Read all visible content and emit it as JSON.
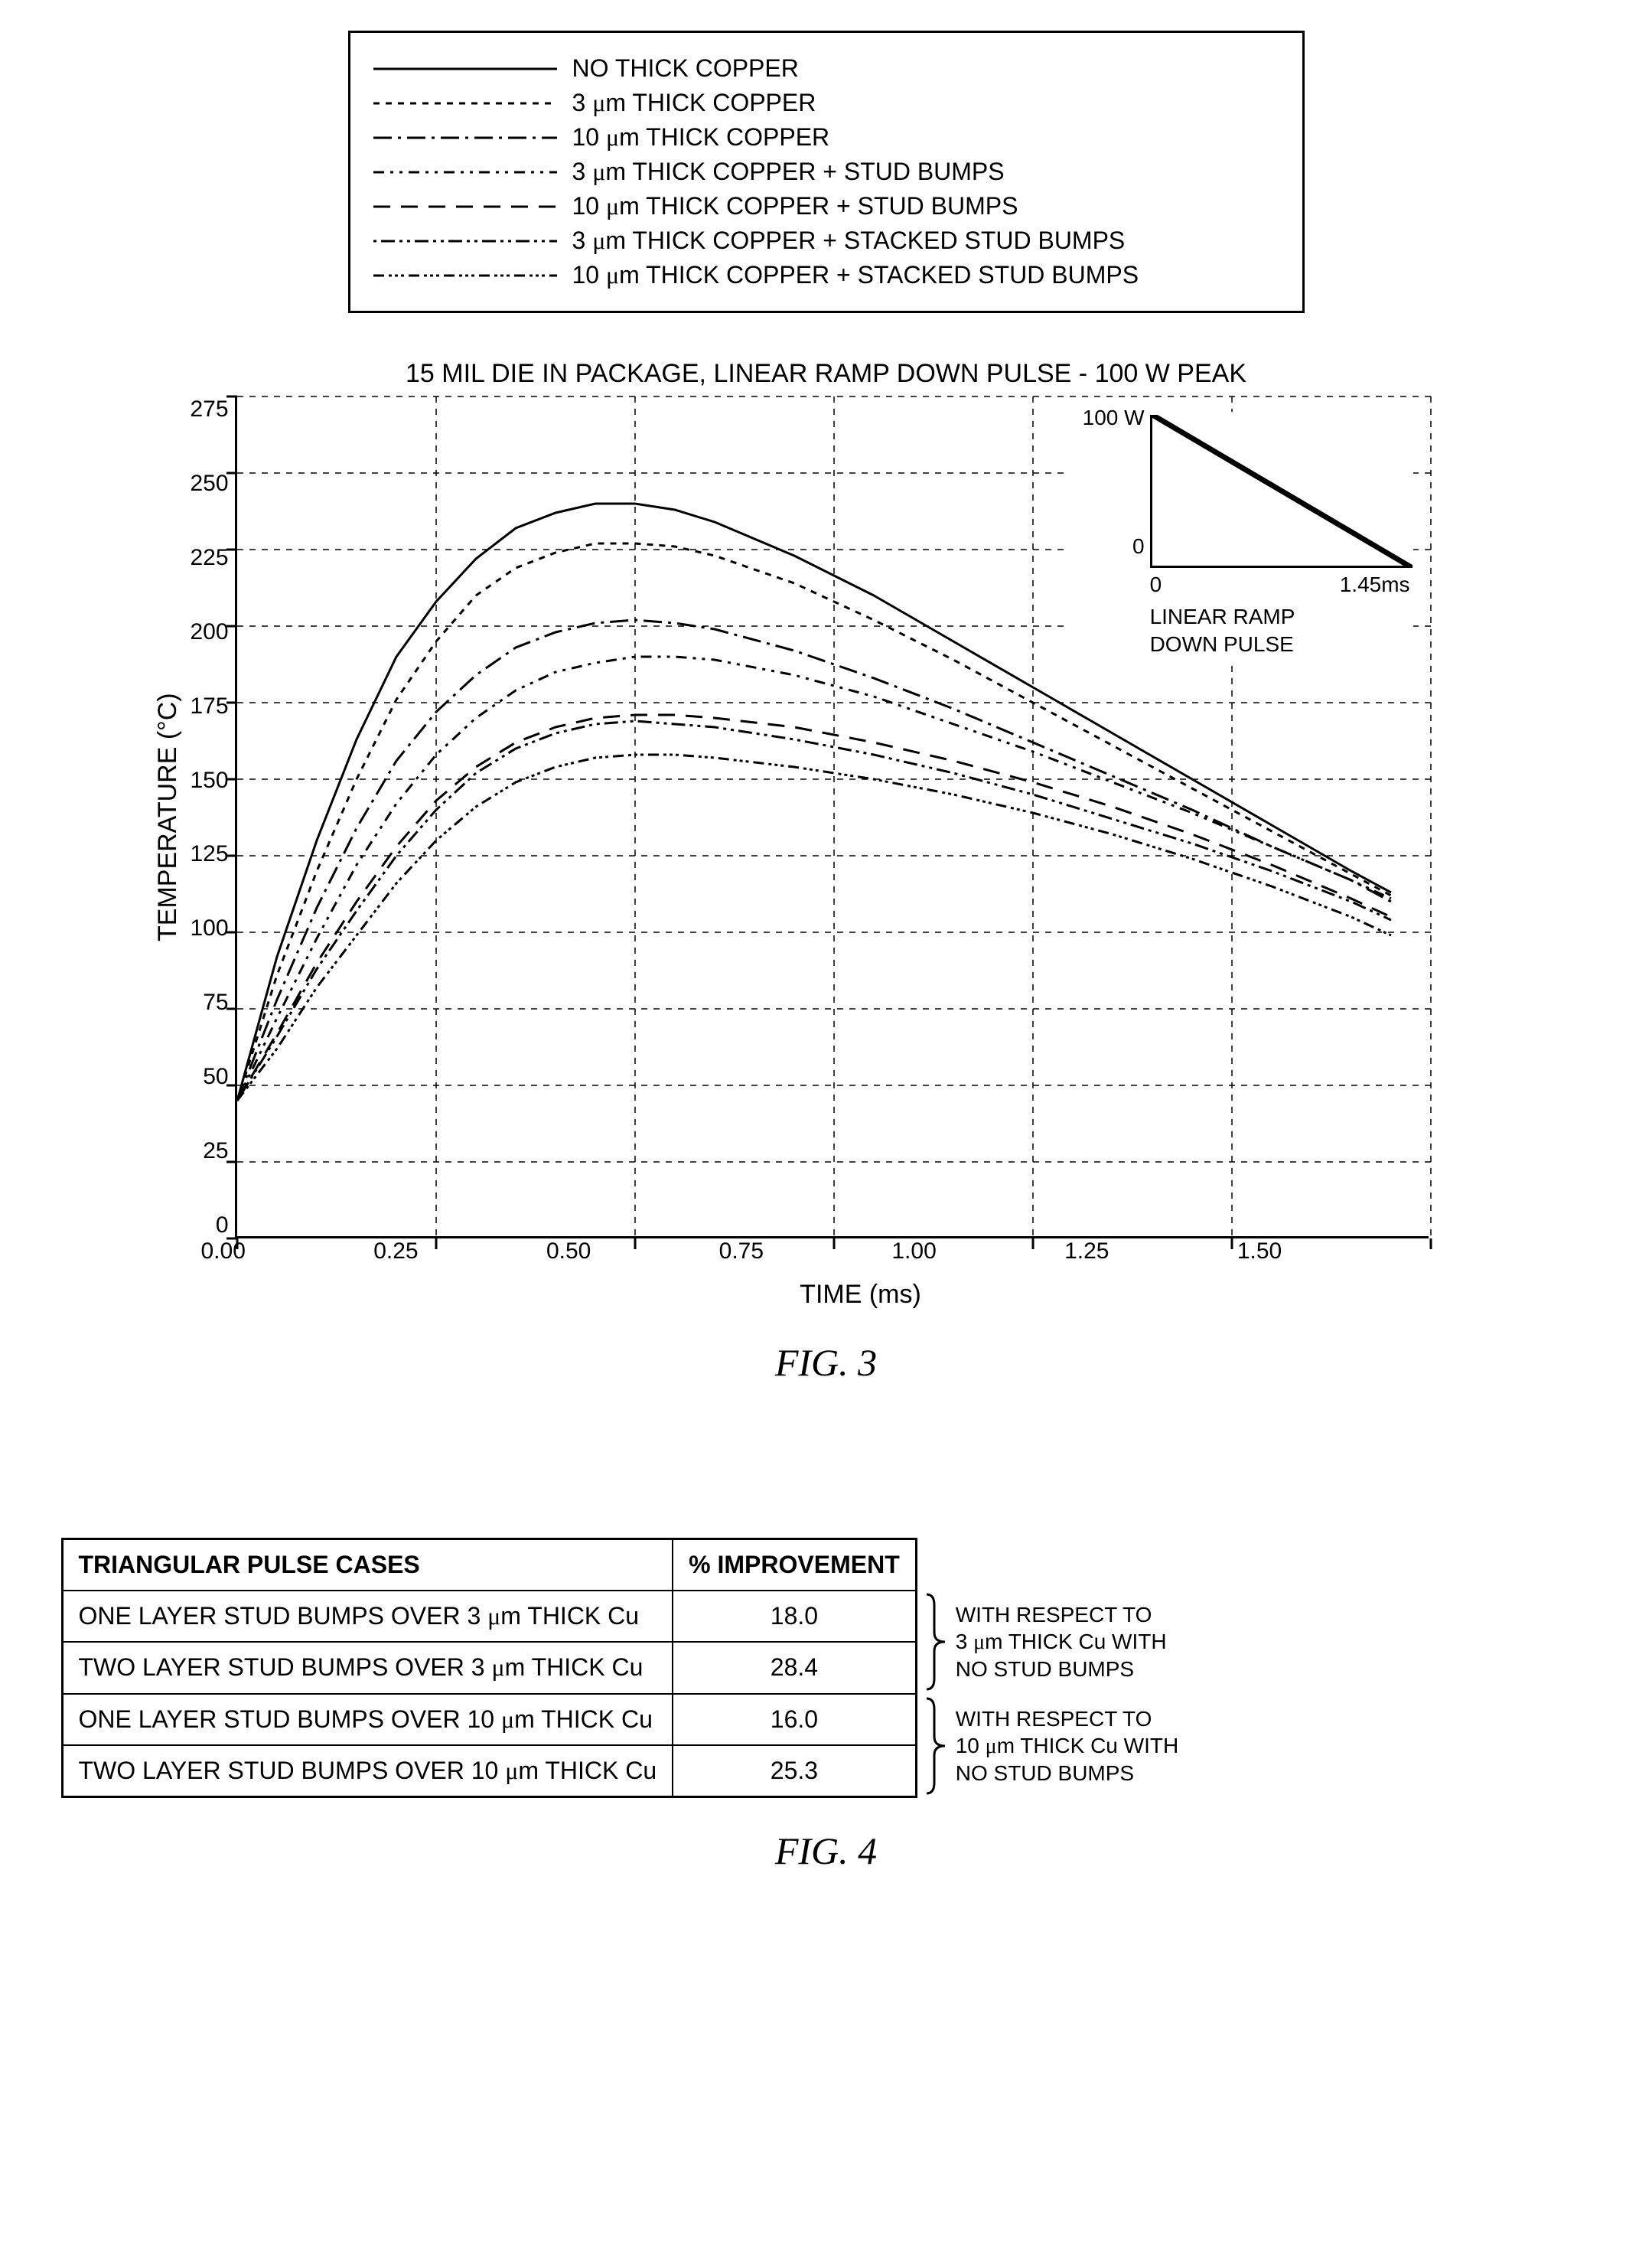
{
  "legend": {
    "items": [
      {
        "label_html": "NO THICK COPPER",
        "dash": "none"
      },
      {
        "label_html": "3 <span class='mu'>μ</span>m THICK COPPER",
        "dash": "8,8"
      },
      {
        "label_html": "10 <span class='mu'>μ</span>m THICK COPPER",
        "dash": "24,8,4,8"
      },
      {
        "label_html": "3 <span class='mu'>μ</span>m THICK COPPER + STUD BUMPS",
        "dash": "14,8,4,8,4,8"
      },
      {
        "label_html": "10 <span class='mu'>μ</span>m THICK COPPER + STUD BUMPS",
        "dash": "22,14"
      },
      {
        "label_html": "3 <span class='mu'>μ</span>m THICK COPPER + STACKED STUD BUMPS",
        "dash": "4,6,18,6,4,6"
      },
      {
        "label_html": "10 <span class='mu'>μ</span>m THICK COPPER + STACKED STUD BUMPS",
        "dash": "14,6,4,4,4,4,4,6"
      }
    ]
  },
  "chart": {
    "title": "15 MIL DIE IN PACKAGE, LINEAR RAMP DOWN PULSE - 100 W PEAK",
    "ylabel": "TEMPERATURE (°C)",
    "xlabel": "TIME (ms)",
    "caption": "FIG. 3",
    "xlim": [
      0,
      1.5
    ],
    "ylim": [
      0,
      275
    ],
    "xticks": [
      "0.00",
      "0.25",
      "0.50",
      "0.75",
      "1.00",
      "1.25",
      "1.50"
    ],
    "yticks": [
      "275",
      "250",
      "225",
      "200",
      "175",
      "150",
      "125",
      "100",
      "75",
      "50",
      "25",
      "0"
    ],
    "grid_color": "#000000",
    "series": [
      {
        "dash": "none",
        "pts": [
          [
            0,
            45
          ],
          [
            0.05,
            92
          ],
          [
            0.1,
            130
          ],
          [
            0.15,
            163
          ],
          [
            0.2,
            190
          ],
          [
            0.25,
            208
          ],
          [
            0.3,
            222
          ],
          [
            0.35,
            232
          ],
          [
            0.4,
            237
          ],
          [
            0.45,
            240
          ],
          [
            0.5,
            240
          ],
          [
            0.55,
            238
          ],
          [
            0.6,
            234
          ],
          [
            0.7,
            223
          ],
          [
            0.8,
            210
          ],
          [
            0.9,
            195
          ],
          [
            1.0,
            180
          ],
          [
            1.1,
            165
          ],
          [
            1.2,
            150
          ],
          [
            1.3,
            135
          ],
          [
            1.4,
            120
          ],
          [
            1.45,
            113
          ]
        ]
      },
      {
        "dash": "8,8",
        "pts": [
          [
            0,
            45
          ],
          [
            0.05,
            86
          ],
          [
            0.1,
            120
          ],
          [
            0.15,
            150
          ],
          [
            0.2,
            176
          ],
          [
            0.25,
            195
          ],
          [
            0.3,
            210
          ],
          [
            0.35,
            219
          ],
          [
            0.4,
            224
          ],
          [
            0.45,
            227
          ],
          [
            0.5,
            227
          ],
          [
            0.55,
            226
          ],
          [
            0.6,
            223
          ],
          [
            0.7,
            214
          ],
          [
            0.8,
            202
          ],
          [
            0.9,
            189
          ],
          [
            1.0,
            175
          ],
          [
            1.1,
            161
          ],
          [
            1.2,
            147
          ],
          [
            1.3,
            133
          ],
          [
            1.4,
            119
          ],
          [
            1.45,
            112
          ]
        ]
      },
      {
        "dash": "24,8,4,8",
        "pts": [
          [
            0,
            45
          ],
          [
            0.05,
            78
          ],
          [
            0.1,
            108
          ],
          [
            0.15,
            134
          ],
          [
            0.2,
            156
          ],
          [
            0.25,
            172
          ],
          [
            0.3,
            184
          ],
          [
            0.35,
            193
          ],
          [
            0.4,
            198
          ],
          [
            0.45,
            201
          ],
          [
            0.5,
            202
          ],
          [
            0.55,
            201
          ],
          [
            0.6,
            199
          ],
          [
            0.7,
            192
          ],
          [
            0.8,
            183
          ],
          [
            0.9,
            173
          ],
          [
            1.0,
            162
          ],
          [
            1.1,
            151
          ],
          [
            1.2,
            140
          ],
          [
            1.3,
            128
          ],
          [
            1.4,
            117
          ],
          [
            1.45,
            110
          ]
        ]
      },
      {
        "dash": "14,8,4,8,4,8",
        "pts": [
          [
            0,
            45
          ],
          [
            0.05,
            72
          ],
          [
            0.1,
            98
          ],
          [
            0.15,
            122
          ],
          [
            0.2,
            142
          ],
          [
            0.25,
            158
          ],
          [
            0.3,
            170
          ],
          [
            0.35,
            179
          ],
          [
            0.4,
            185
          ],
          [
            0.45,
            188
          ],
          [
            0.5,
            190
          ],
          [
            0.55,
            190
          ],
          [
            0.6,
            189
          ],
          [
            0.7,
            184
          ],
          [
            0.8,
            177
          ],
          [
            0.9,
            168
          ],
          [
            1.0,
            159
          ],
          [
            1.1,
            149
          ],
          [
            1.2,
            139
          ],
          [
            1.3,
            128
          ],
          [
            1.4,
            117
          ],
          [
            1.45,
            111
          ]
        ]
      },
      {
        "dash": "22,14",
        "pts": [
          [
            0,
            45
          ],
          [
            0.05,
            67
          ],
          [
            0.1,
            90
          ],
          [
            0.15,
            110
          ],
          [
            0.2,
            128
          ],
          [
            0.25,
            143
          ],
          [
            0.3,
            154
          ],
          [
            0.35,
            162
          ],
          [
            0.4,
            167
          ],
          [
            0.45,
            170
          ],
          [
            0.5,
            171
          ],
          [
            0.55,
            171
          ],
          [
            0.6,
            170
          ],
          [
            0.7,
            167
          ],
          [
            0.8,
            162
          ],
          [
            0.9,
            156
          ],
          [
            1.0,
            149
          ],
          [
            1.1,
            141
          ],
          [
            1.2,
            132
          ],
          [
            1.3,
            122
          ],
          [
            1.4,
            111
          ],
          [
            1.45,
            105
          ]
        ]
      },
      {
        "dash": "4,6,18,6,4,6",
        "pts": [
          [
            0,
            45
          ],
          [
            0.05,
            66
          ],
          [
            0.1,
            88
          ],
          [
            0.15,
            107
          ],
          [
            0.2,
            125
          ],
          [
            0.25,
            140
          ],
          [
            0.3,
            152
          ],
          [
            0.35,
            160
          ],
          [
            0.4,
            165
          ],
          [
            0.45,
            168
          ],
          [
            0.5,
            169
          ],
          [
            0.55,
            168
          ],
          [
            0.6,
            167
          ],
          [
            0.7,
            163
          ],
          [
            0.8,
            158
          ],
          [
            0.9,
            152
          ],
          [
            1.0,
            145
          ],
          [
            1.1,
            137
          ],
          [
            1.2,
            129
          ],
          [
            1.3,
            120
          ],
          [
            1.4,
            110
          ],
          [
            1.45,
            104
          ]
        ]
      },
      {
        "dash": "14,6,4,4,4,4,4,6",
        "pts": [
          [
            0,
            45
          ],
          [
            0.05,
            62
          ],
          [
            0.1,
            82
          ],
          [
            0.15,
            99
          ],
          [
            0.2,
            116
          ],
          [
            0.25,
            130
          ],
          [
            0.3,
            141
          ],
          [
            0.35,
            149
          ],
          [
            0.4,
            154
          ],
          [
            0.45,
            157
          ],
          [
            0.5,
            158
          ],
          [
            0.55,
            158
          ],
          [
            0.6,
            157
          ],
          [
            0.7,
            154
          ],
          [
            0.8,
            150
          ],
          [
            0.9,
            145
          ],
          [
            1.0,
            139
          ],
          [
            1.1,
            132
          ],
          [
            1.2,
            124
          ],
          [
            1.3,
            115
          ],
          [
            1.4,
            105
          ],
          [
            1.45,
            99
          ]
        ]
      }
    ],
    "inset": {
      "y_top": "100 W",
      "y_bot": "0",
      "x_left": "0",
      "x_right": "1.45ms",
      "caption_line1": "LINEAR RAMP",
      "caption_line2": "DOWN PULSE"
    }
  },
  "table": {
    "caption": "FIG. 4",
    "headers": [
      "TRIANGULAR PULSE CASES",
      "% IMPROVEMENT"
    ],
    "rows": [
      {
        "case_html": "ONE LAYER STUD BUMPS OVER 3 <span class='mu'>μ</span>m THICK Cu",
        "val": "18.0"
      },
      {
        "case_html": "TWO LAYER STUD BUMPS OVER 3 <span class='mu'>μ</span>m THICK Cu",
        "val": "28.4"
      },
      {
        "case_html": "ONE LAYER STUD BUMPS OVER 10 <span class='mu'>μ</span>m THICK Cu",
        "val": "16.0"
      },
      {
        "case_html": "TWO LAYER STUD BUMPS OVER 10 <span class='mu'>μ</span>m THICK Cu",
        "val": "25.3"
      }
    ],
    "brackets": [
      {
        "text_html": "WITH RESPECT TO<br>3 <span class='mu'>μ</span>m THICK Cu WITH<br>NO STUD BUMPS"
      },
      {
        "text_html": "WITH RESPECT TO<br>10 <span class='mu'>μ</span>m THICK Cu WITH<br>NO STUD BUMPS"
      }
    ]
  }
}
